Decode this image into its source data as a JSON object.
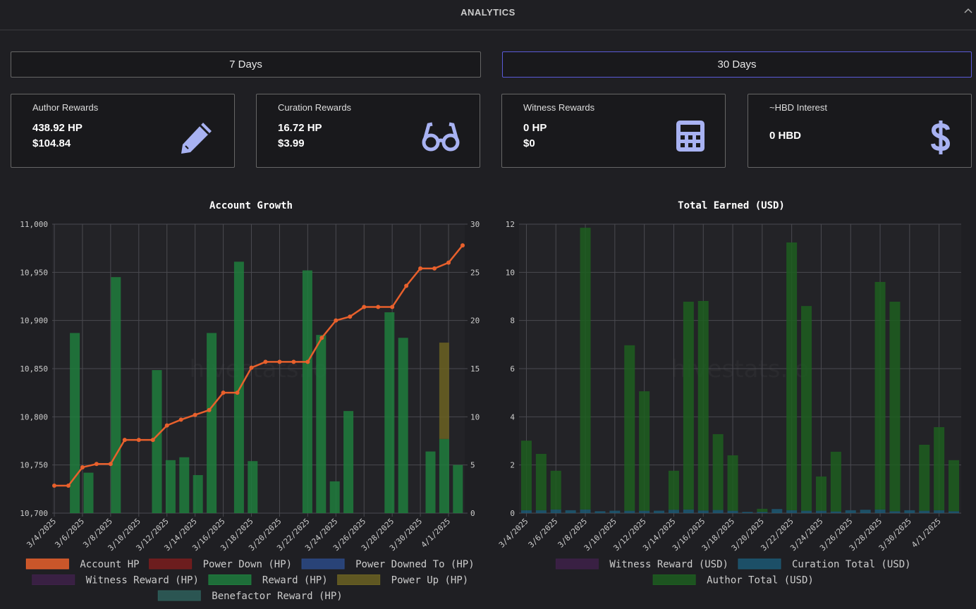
{
  "header": {
    "title": "ANALYTICS"
  },
  "tabs": [
    "7 Days",
    "30 Days"
  ],
  "cards": [
    {
      "title": "Author Rewards",
      "lines": [
        "438.92 HP",
        "$104.84"
      ]
    },
    {
      "title": "Curation Rewards",
      "lines": [
        "16.72 HP",
        "$3.99"
      ]
    },
    {
      "title": "Witness Rewards",
      "lines": [
        "0 HP",
        "$0"
      ]
    },
    {
      "title": "~HBD Interest",
      "lines": [
        "0 HBD"
      ]
    }
  ],
  "chart_data": [
    {
      "type": "bar",
      "title": "Account Growth",
      "watermark": "hivestats.io",
      "stacked": true,
      "grid": true,
      "legend": "bottom",
      "categories": [
        "3/4/2025",
        null,
        "3/6/2025",
        null,
        "3/8/2025",
        null,
        "3/10/2025",
        null,
        "3/12/2025",
        null,
        "3/14/2025",
        null,
        "3/16/2025",
        null,
        "3/18/2025",
        null,
        "3/20/2025",
        null,
        "3/22/2025",
        null,
        "3/24/2025",
        null,
        "3/26/2025",
        null,
        "3/28/2025",
        null,
        "3/30/2025",
        null,
        "4/1/2025",
        null
      ],
      "ylim": [
        10700,
        11000
      ],
      "yticks": [
        {
          "value": 10700,
          "label": "10,700"
        },
        {
          "value": 10750,
          "label": "10,750"
        },
        {
          "value": 10800,
          "label": "10,800"
        },
        {
          "value": 10850,
          "label": "10,850"
        },
        {
          "value": 10900,
          "label": "10,900"
        },
        {
          "value": 10950,
          "label": "10,950"
        },
        {
          "value": 11000,
          "label": "11,000"
        }
      ],
      "y2lim": [
        0,
        30
      ],
      "y2ticks": [
        0,
        5,
        10,
        15,
        20,
        25,
        30
      ],
      "series": [
        {
          "name": "Account HP",
          "type": "line",
          "color": "#e8602c",
          "values": [
            10728.5,
            10728.5,
            10747.6,
            10751,
            10751,
            10776,
            10776,
            10776,
            10791,
            10797,
            10802,
            10807,
            10825,
            10825,
            10851,
            10857,
            10857,
            10857,
            10857,
            10882,
            10900,
            10904,
            10914,
            10914,
            10914,
            10936,
            10954,
            10954,
            10960,
            10978
          ]
        },
        {
          "name": "Power Down (HP)",
          "color": "#7a1d1d",
          "axis": "y2",
          "values": [
            0,
            0,
            0,
            0,
            0,
            0,
            0,
            0,
            0,
            0,
            0,
            0,
            0,
            0,
            0,
            0,
            0,
            0,
            0,
            0,
            0,
            0,
            0,
            0,
            0,
            0,
            0,
            0,
            0,
            0
          ]
        },
        {
          "name": "Power Downed To (HP)",
          "color": "#2c4a86",
          "axis": "y2",
          "values": [
            0,
            0,
            0,
            0,
            0,
            0,
            0,
            0,
            0,
            0,
            0,
            0,
            0,
            0,
            0,
            0,
            0,
            0,
            0,
            0,
            0,
            0,
            0,
            0,
            0,
            0,
            0,
            0,
            0,
            0
          ]
        },
        {
          "name": "Witness Reward (HP)",
          "color": "#3e2149",
          "axis": "y2",
          "values": [
            0,
            0,
            0,
            0,
            0,
            0,
            0,
            0,
            0,
            0,
            0,
            0,
            0,
            0,
            0,
            0,
            0,
            0,
            0,
            0,
            0,
            0,
            0,
            0,
            0,
            0,
            0,
            0,
            0,
            0
          ]
        },
        {
          "name": "Reward (HP)",
          "color": "#1f7d3d",
          "axis": "y2",
          "values": [
            0,
            18.7,
            4.2,
            0,
            24.5,
            0,
            0,
            14.85,
            5.5,
            5.8,
            3.95,
            18.7,
            0,
            26.1,
            5.4,
            0,
            0,
            0,
            25.2,
            18.5,
            3.3,
            10.6,
            0,
            0,
            20.85,
            18.2,
            0,
            6.4,
            7.7,
            5.0
          ]
        },
        {
          "name": "Power Up (HP)",
          "color": "#6b6122",
          "axis": "y2",
          "values": [
            0,
            0,
            0,
            0,
            0,
            0,
            0,
            0,
            0,
            0,
            0,
            0,
            0,
            0,
            0,
            0,
            0,
            0,
            0,
            0,
            0,
            0,
            0,
            0,
            0,
            0,
            0,
            0,
            10,
            0
          ]
        },
        {
          "name": "Benefactor Reward (HP)",
          "color": "#2e5f5a",
          "axis": "y2",
          "values": [
            0,
            0,
            0,
            0,
            0,
            0,
            0,
            0,
            0,
            0,
            0,
            0,
            0,
            0,
            0,
            0,
            0,
            0,
            0,
            0,
            0,
            0,
            0,
            0,
            0,
            0,
            0,
            0,
            0,
            0
          ]
        }
      ]
    },
    {
      "type": "bar",
      "title": "Total Earned (USD)",
      "watermark": "hivestats.io",
      "stacked": true,
      "grid": true,
      "legend": "bottom",
      "categories": [
        "3/4/2025",
        null,
        "3/6/2025",
        null,
        "3/8/2025",
        null,
        "3/10/2025",
        null,
        "3/12/2025",
        null,
        "3/14/2025",
        null,
        "3/16/2025",
        null,
        "3/18/2025",
        null,
        "3/20/2025",
        null,
        "3/22/2025",
        null,
        "3/24/2025",
        null,
        "3/26/2025",
        null,
        "3/28/2025",
        null,
        "3/30/2025",
        null,
        "4/1/2025",
        null
      ],
      "ylim": [
        0,
        12
      ],
      "yticks": [
        0,
        2,
        4,
        6,
        8,
        10,
        12
      ],
      "series": [
        {
          "name": "Witness Reward (USD)",
          "color": "#3e2149",
          "values": [
            0,
            0,
            0,
            0,
            0,
            0,
            0,
            0,
            0,
            0,
            0,
            0,
            0,
            0,
            0,
            0,
            0,
            0,
            0,
            0,
            0,
            0,
            0,
            0,
            0,
            0,
            0,
            0,
            0,
            0
          ]
        },
        {
          "name": "Curation Total (USD)",
          "color": "#1c5873",
          "values": [
            0.12,
            0.12,
            0.15,
            0.12,
            0.15,
            0.08,
            0.1,
            0.1,
            0.1,
            0.1,
            0.14,
            0.15,
            0.11,
            0.13,
            0.1,
            0.05,
            0.05,
            0.17,
            0.12,
            0.1,
            0.1,
            0.07,
            0.12,
            0.14,
            0.15,
            0.08,
            0.12,
            0.1,
            0.12,
            0.08
          ]
        },
        {
          "name": "Author Total (USD)",
          "color": "#1d5e20",
          "values": [
            2.89,
            2.34,
            1.61,
            0,
            11.7,
            0,
            0,
            6.87,
            4.96,
            0,
            1.62,
            8.63,
            8.7,
            3.15,
            2.3,
            0,
            0.13,
            0,
            11.12,
            8.5,
            1.42,
            2.48,
            0,
            0,
            9.45,
            8.7,
            0,
            2.74,
            3.45,
            2.12
          ]
        }
      ]
    }
  ]
}
